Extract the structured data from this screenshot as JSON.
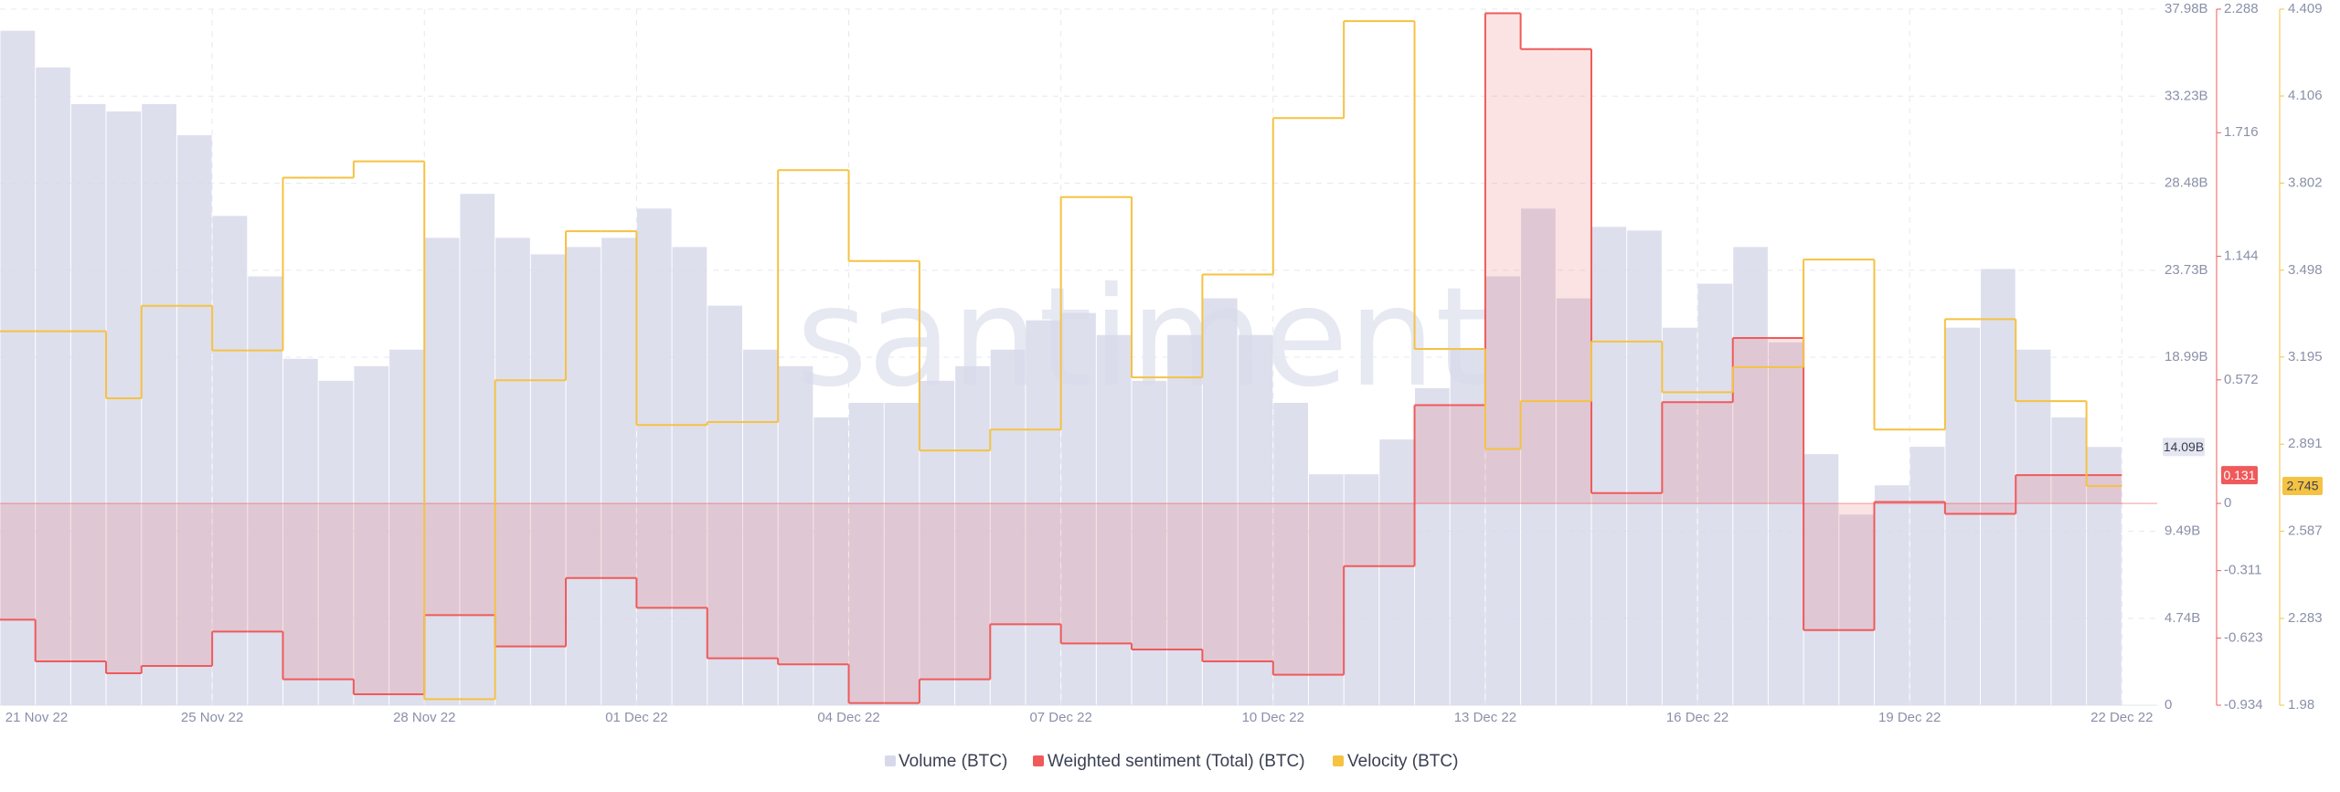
{
  "chart_data": {
    "type": "combo",
    "watermark": "santiment",
    "categories": [
      "21 Nov 22",
      null,
      null,
      null,
      null,
      null,
      "25 Nov 22",
      null,
      null,
      null,
      null,
      null,
      "28 Nov 22",
      null,
      null,
      null,
      null,
      null,
      "01 Dec 22",
      null,
      null,
      null,
      null,
      null,
      "04 Dec 22",
      null,
      null,
      null,
      null,
      null,
      "07 Dec 22",
      null,
      null,
      null,
      null,
      null,
      "10 Dec 22",
      null,
      null,
      null,
      null,
      null,
      "13 Dec 22",
      null,
      null,
      null,
      null,
      null,
      "16 Dec 22",
      null,
      null,
      null,
      null,
      null,
      "19 Dec 22",
      null,
      null,
      null,
      null,
      null,
      "22 Dec 22"
    ],
    "ylim": [
      0,
      37980000000
    ],
    "yticks": [
      0,
      {
        "value": 4740000000,
        "label": "4.74B"
      },
      {
        "value": 9490000000,
        "label": "9.49B"
      },
      {
        "value": 18990000000,
        "label": "18.99B"
      },
      {
        "value": 23730000000,
        "label": "23.73B"
      },
      {
        "value": 28480000000,
        "label": "28.48B"
      },
      {
        "value": 33230000000,
        "label": "33.23B"
      },
      {
        "value": 37980000000,
        "label": "37.98B"
      }
    ],
    "y2lim": [
      -0.934,
      2.288
    ],
    "y2ticks": [
      -0.934,
      -0.623,
      -0.311,
      0,
      0.572,
      1.144,
      1.716,
      2.288
    ],
    "y3lim": [
      1.98,
      4.409
    ],
    "y3ticks": [
      1.98,
      2.283,
      2.587,
      2.891,
      3.195,
      3.498,
      3.802,
      4.106,
      4.409
    ],
    "grid": true,
    "legend": "bottom",
    "series": [
      {
        "name": "Volume (BTC)",
        "type": "bar",
        "axis": "y",
        "color": "#d7d9ea",
        "current_label": "14.09B",
        "values": [
          36800000000,
          34800000000,
          32800000000,
          32400000000,
          32800000000,
          31100000000,
          26700000000,
          23400000000,
          18900000000,
          17700000000,
          18500000000,
          19400000000,
          25500000000,
          27900000000,
          25500000000,
          24600000000,
          25000000000,
          25500000000,
          27100000000,
          25000000000,
          21800000000,
          19400000000,
          18500000000,
          15700000000,
          16500000000,
          16500000000,
          17700000000,
          18500000000,
          19400000000,
          21000000000,
          21400000000,
          20200000000,
          17700000000,
          20200000000,
          22200000000,
          20200000000,
          16500000000,
          12600000000,
          12600000000,
          14500000000,
          17300000000,
          19400000000,
          23400000000,
          27100000000,
          22200000000,
          26100000000,
          25900000000,
          20600000000,
          23000000000,
          25000000000,
          19800000000,
          13700000000,
          10400000000,
          12000000000,
          14100000000,
          20600000000,
          23800000000,
          19400000000,
          15700000000,
          14090000000,
          null
        ]
      },
      {
        "name": "Weighted sentiment (Total) (BTC)",
        "type": "step",
        "axis": "y2",
        "color": "#f05a5a",
        "area": true,
        "current_label": "0.131",
        "values": [
          -0.538,
          -0.731,
          -0.731,
          -0.786,
          -0.752,
          -0.752,
          -0.593,
          -0.593,
          -0.814,
          -0.814,
          -0.883,
          -0.883,
          -0.517,
          -0.517,
          -0.662,
          -0.662,
          -0.345,
          -0.345,
          -0.483,
          -0.483,
          -0.717,
          -0.717,
          -0.745,
          -0.745,
          -0.924,
          -0.924,
          -0.814,
          -0.814,
          -0.559,
          -0.559,
          -0.648,
          -0.648,
          -0.676,
          -0.676,
          -0.731,
          -0.731,
          -0.793,
          -0.793,
          -0.29,
          -0.29,
          0.455,
          0.455,
          2.269,
          2.103,
          2.103,
          0.048,
          0.048,
          0.469,
          0.469,
          0.766,
          0.766,
          -0.586,
          -0.586,
          0.007,
          0.007,
          -0.048,
          -0.048,
          0.131,
          0.131,
          0.131,
          null
        ]
      },
      {
        "name": "Velocity (BTC)",
        "type": "step",
        "axis": "y3",
        "color": "#f5c242",
        "area": false,
        "current_label": "2.745",
        "values": [
          3.285,
          3.285,
          3.285,
          3.051,
          3.374,
          3.374,
          3.218,
          3.218,
          3.821,
          3.821,
          3.878,
          3.878,
          2.001,
          2.001,
          3.114,
          3.114,
          3.634,
          3.634,
          2.958,
          2.958,
          2.968,
          2.968,
          3.847,
          3.847,
          3.53,
          3.53,
          2.869,
          2.869,
          2.942,
          2.942,
          3.753,
          3.753,
          3.124,
          3.124,
          3.483,
          3.483,
          4.029,
          4.029,
          4.367,
          4.367,
          3.223,
          3.223,
          2.874,
          3.041,
          3.041,
          3.249,
          3.249,
          3.072,
          3.072,
          3.16,
          3.16,
          3.535,
          3.535,
          2.942,
          2.942,
          3.327,
          3.327,
          3.041,
          3.041,
          2.745,
          null
        ]
      }
    ]
  }
}
